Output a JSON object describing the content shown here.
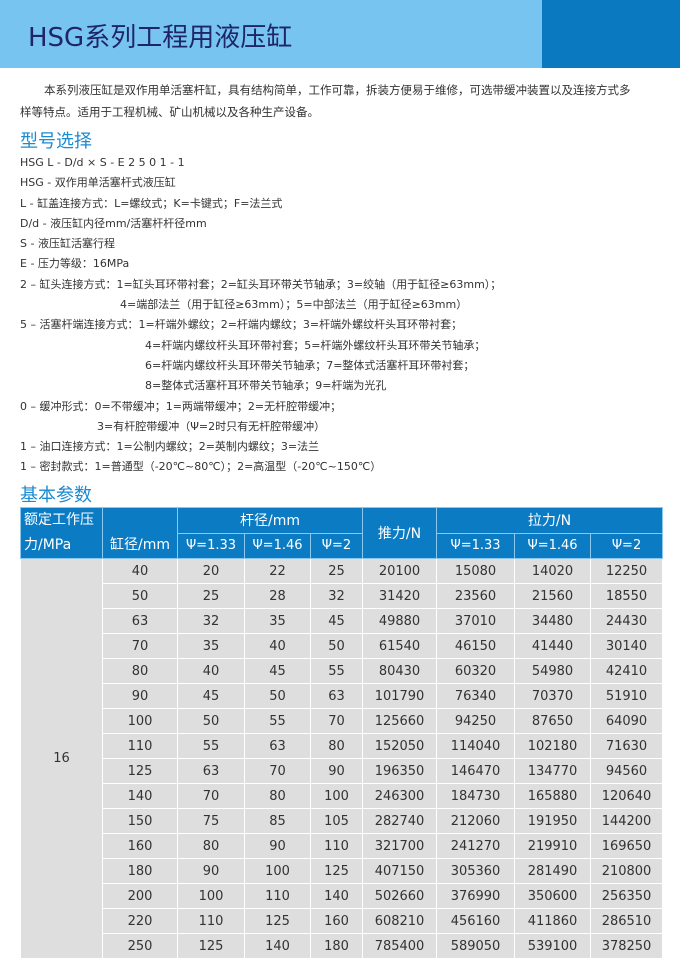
{
  "title": "HSG系列工程用液压缸",
  "intro": "本系列液压缸是双作用单活塞杆缸，具有结构简单，工作可靠，拆装方便易于维修，可选带缓冲装置以及连接方式多样等特点。适用于工程机械、矿山机械以及各种生产设备。",
  "model_heading": "型号选择",
  "model_lines": [
    {
      "text": "HSG L - D/d × S - E 2 5 0 1 - 1",
      "indent": 0
    },
    {
      "text": "HSG - 双作用单活塞杆式液压缸",
      "indent": 0
    },
    {
      "text": "L - 缸盖连接方式：L=螺纹式；K=卡键式；F=法兰式",
      "indent": 0
    },
    {
      "text": "D/d - 液压缸内径mm/活塞杆杆径mm",
      "indent": 0
    },
    {
      "text": "S - 液压缸活塞行程",
      "indent": 0
    },
    {
      "text": "E - 压力等级：16MPa",
      "indent": 0
    },
    {
      "text": "2 – 缸头连接方式：1=缸头耳环带衬套；2=缸头耳环带关节轴承；3=绞轴（用于缸径≥63mm）；",
      "indent": 0
    },
    {
      "text": "4=端部法兰（用于缸径≥63mm）；5=中部法兰（用于缸径≥63mm）",
      "indent": 100
    },
    {
      "text": "5 – 活塞杆端连接方式：1=杆端外螺纹；2=杆端内螺纹；3=杆端外螺纹杆头耳环带衬套；",
      "indent": 0
    },
    {
      "text": "4=杆端内螺纹杆头耳环带衬套；5=杆端外螺纹杆头耳环带关节轴承；",
      "indent": 125
    },
    {
      "text": "6=杆端内螺纹杆头耳环带关节轴承；7=整体式活塞杆耳环带衬套；",
      "indent": 125
    },
    {
      "text": "8=整体式活塞杆耳环带关节轴承；9=杆端为光孔",
      "indent": 125
    },
    {
      "text": "0 – 缓冲形式：0=不带缓冲；1=两端带缓冲；2=无杆腔带缓冲；",
      "indent": 0
    },
    {
      "text": "3=有杆腔带缓冲（Ψ=2时只有无杆腔带缓冲）",
      "indent": 77
    },
    {
      "text": "1 – 油口连接方式：1=公制内螺纹；2=英制内螺纹；3=法兰",
      "indent": 0
    },
    {
      "text": "1 – 密封款式：1=普通型（-20℃~80℃）；2=高温型（-20℃~150℃）",
      "indent": 0
    }
  ],
  "params_heading": "基本参数",
  "table": {
    "h_pressure": "额定工作压力/MPa",
    "h_bore": "缸径/mm",
    "h_rod": "杆径/mm",
    "h_push": "推力/N",
    "h_pull": "拉力/N",
    "psi": [
      "Ψ=1.33",
      "Ψ=1.46",
      "Ψ=2"
    ],
    "pressure": "16",
    "rows": [
      [
        "40",
        "20",
        "22",
        "25",
        "20100",
        "15080",
        "14020",
        "12250"
      ],
      [
        "50",
        "25",
        "28",
        "32",
        "31420",
        "23560",
        "21560",
        "18550"
      ],
      [
        "63",
        "32",
        "35",
        "45",
        "49880",
        "37010",
        "34480",
        "24430"
      ],
      [
        "70",
        "35",
        "40",
        "50",
        "61540",
        "46150",
        "41440",
        "30140"
      ],
      [
        "80",
        "40",
        "45",
        "55",
        "80430",
        "60320",
        "54980",
        "42410"
      ],
      [
        "90",
        "45",
        "50",
        "63",
        "101790",
        "76340",
        "70370",
        "51910"
      ],
      [
        "100",
        "50",
        "55",
        "70",
        "125660",
        "94250",
        "87650",
        "64090"
      ],
      [
        "110",
        "55",
        "63",
        "80",
        "152050",
        "114040",
        "102180",
        "71630"
      ],
      [
        "125",
        "63",
        "70",
        "90",
        "196350",
        "146470",
        "134770",
        "94560"
      ],
      [
        "140",
        "70",
        "80",
        "100",
        "246300",
        "184730",
        "165880",
        "120640"
      ],
      [
        "150",
        "75",
        "85",
        "105",
        "282740",
        "212060",
        "191950",
        "144200"
      ],
      [
        "160",
        "80",
        "90",
        "110",
        "321700",
        "241270",
        "219910",
        "169650"
      ],
      [
        "180",
        "90",
        "100",
        "125",
        "407150",
        "305360",
        "281490",
        "210800"
      ],
      [
        "200",
        "100",
        "110",
        "140",
        "502660",
        "376990",
        "350600",
        "256350"
      ],
      [
        "220",
        "110",
        "125",
        "160",
        "608210",
        "456160",
        "411860",
        "286510"
      ],
      [
        "250",
        "125",
        "140",
        "180",
        "785400",
        "589050",
        "539100",
        "378250"
      ]
    ]
  },
  "colors": {
    "banner_light": "#77c4f1",
    "banner_dark": "#0a79c0",
    "title": "#1e2669",
    "heading": "#1b8bd2",
    "table_header": "#0b7cc4",
    "table_cell": "#dedede"
  }
}
